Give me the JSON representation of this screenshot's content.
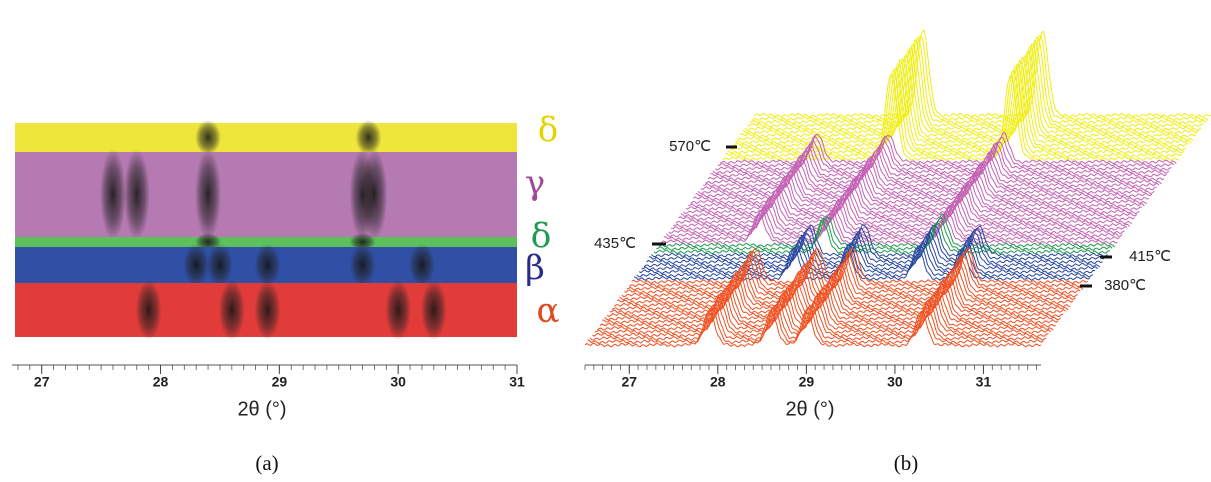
{
  "chart_data": [
    {
      "type": "heatmap",
      "panel_label": "(a)",
      "x_label": "2θ (°)",
      "xlim": [
        26.75,
        31.0
      ],
      "xticks": [
        27,
        28,
        29,
        30,
        31
      ],
      "minor_tick_step": 0.1,
      "phases": [
        {
          "name": "δ",
          "color": "#eee63a",
          "label_color": "#e6d400",
          "peaks": [
            28.4,
            29.75
          ]
        },
        {
          "name": "γ",
          "color": "#b67ab2",
          "label_color": "#a04898",
          "peaks": [
            27.6,
            27.8,
            28.4,
            29.7,
            29.8
          ]
        },
        {
          "name": "δ",
          "color": "#5cc05c",
          "label_color": "#1f9a50",
          "peaks": [
            28.4,
            29.7
          ]
        },
        {
          "name": "β",
          "color": "#3050a6",
          "label_color": "#2a2a8c",
          "peaks": [
            28.3,
            28.5,
            28.9,
            29.7,
            30.2
          ]
        },
        {
          "name": "α",
          "color": "#e23c3a",
          "label_color": "#e04a20",
          "peaks": [
            27.9,
            28.6,
            28.9,
            30.0,
            30.3
          ]
        }
      ]
    },
    {
      "type": "waterfall",
      "panel_label": "(b)",
      "x_label": "2θ (°)",
      "xlim": [
        26.5,
        31.65
      ],
      "xticks": [
        27,
        28,
        29,
        30,
        31
      ],
      "minor_tick_step": 0.1,
      "phases": [
        {
          "color": "#f0ee10",
          "traces": 14,
          "peaks": [
            28.4,
            29.75
          ]
        },
        {
          "color": "#c462b4",
          "traces": 25,
          "peaks": [
            27.6,
            28.4,
            29.7
          ]
        },
        {
          "color": "#1f9a50",
          "traces": 3,
          "peaks": [
            28.4,
            29.7
          ]
        },
        {
          "color": "#2848a0",
          "traces": 8,
          "peaks": [
            28.3,
            28.9,
            29.7,
            30.2
          ]
        },
        {
          "color": "#f05020",
          "traces": 20,
          "peaks": [
            27.9,
            28.6,
            29.0,
            30.3
          ]
        }
      ],
      "temperatures": [
        {
          "value": 570,
          "label": "570℃"
        },
        {
          "value": 435,
          "label": "435℃"
        },
        {
          "value": 415,
          "label": "415℃"
        },
        {
          "value": 380,
          "label": "380℃"
        }
      ]
    }
  ]
}
